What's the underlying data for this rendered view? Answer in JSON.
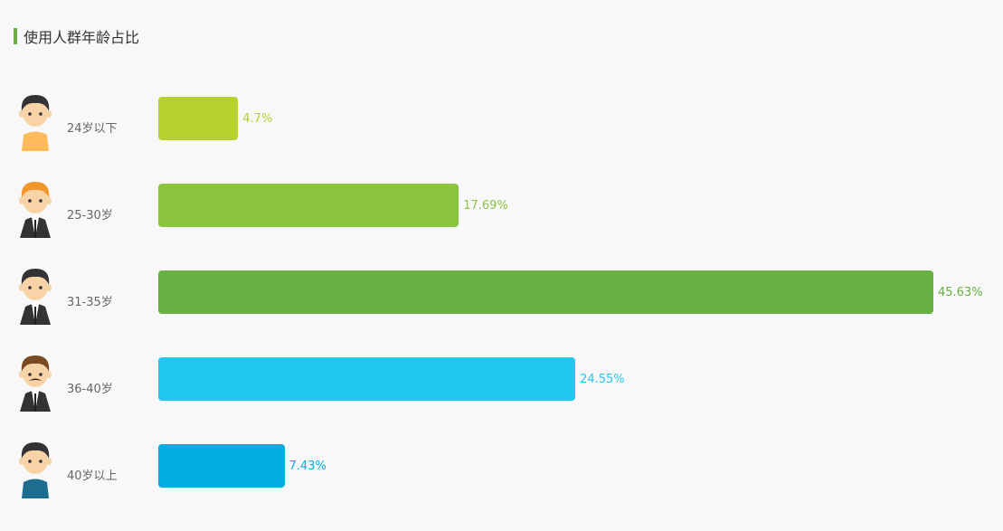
{
  "title": "使用人群年龄占比",
  "accent": "#67b044",
  "chart_data": {
    "type": "bar",
    "orientation": "horizontal",
    "categories": [
      "24岁以下",
      "25-30岁",
      "31-35岁",
      "36-40岁",
      "40岁以上"
    ],
    "values": [
      4.7,
      17.69,
      45.63,
      24.55,
      7.43
    ],
    "value_labels": [
      "4.7%",
      "17.69%",
      "45.63%",
      "24.55%",
      "7.43%"
    ],
    "colors": [
      "#b5d22f",
      "#8dc43e",
      "#67b044",
      "#20c8f0",
      "#00aedf"
    ],
    "avatars": [
      {
        "hair": "#333333",
        "shirt": "#ffba5a",
        "suit": false
      },
      {
        "hair": "#f0962a",
        "shirt": "#ffffff",
        "suit": true
      },
      {
        "hair": "#333333",
        "shirt": "#ffffff",
        "suit": true
      },
      {
        "hair": "#7a4a22",
        "shirt": "#ffffff",
        "suit": true,
        "mustache": true
      },
      {
        "hair": "#333333",
        "shirt": "#1d6e8e",
        "suit": false
      }
    ],
    "xlim": [
      0,
      45.63
    ],
    "grid": false,
    "legend": "none"
  }
}
